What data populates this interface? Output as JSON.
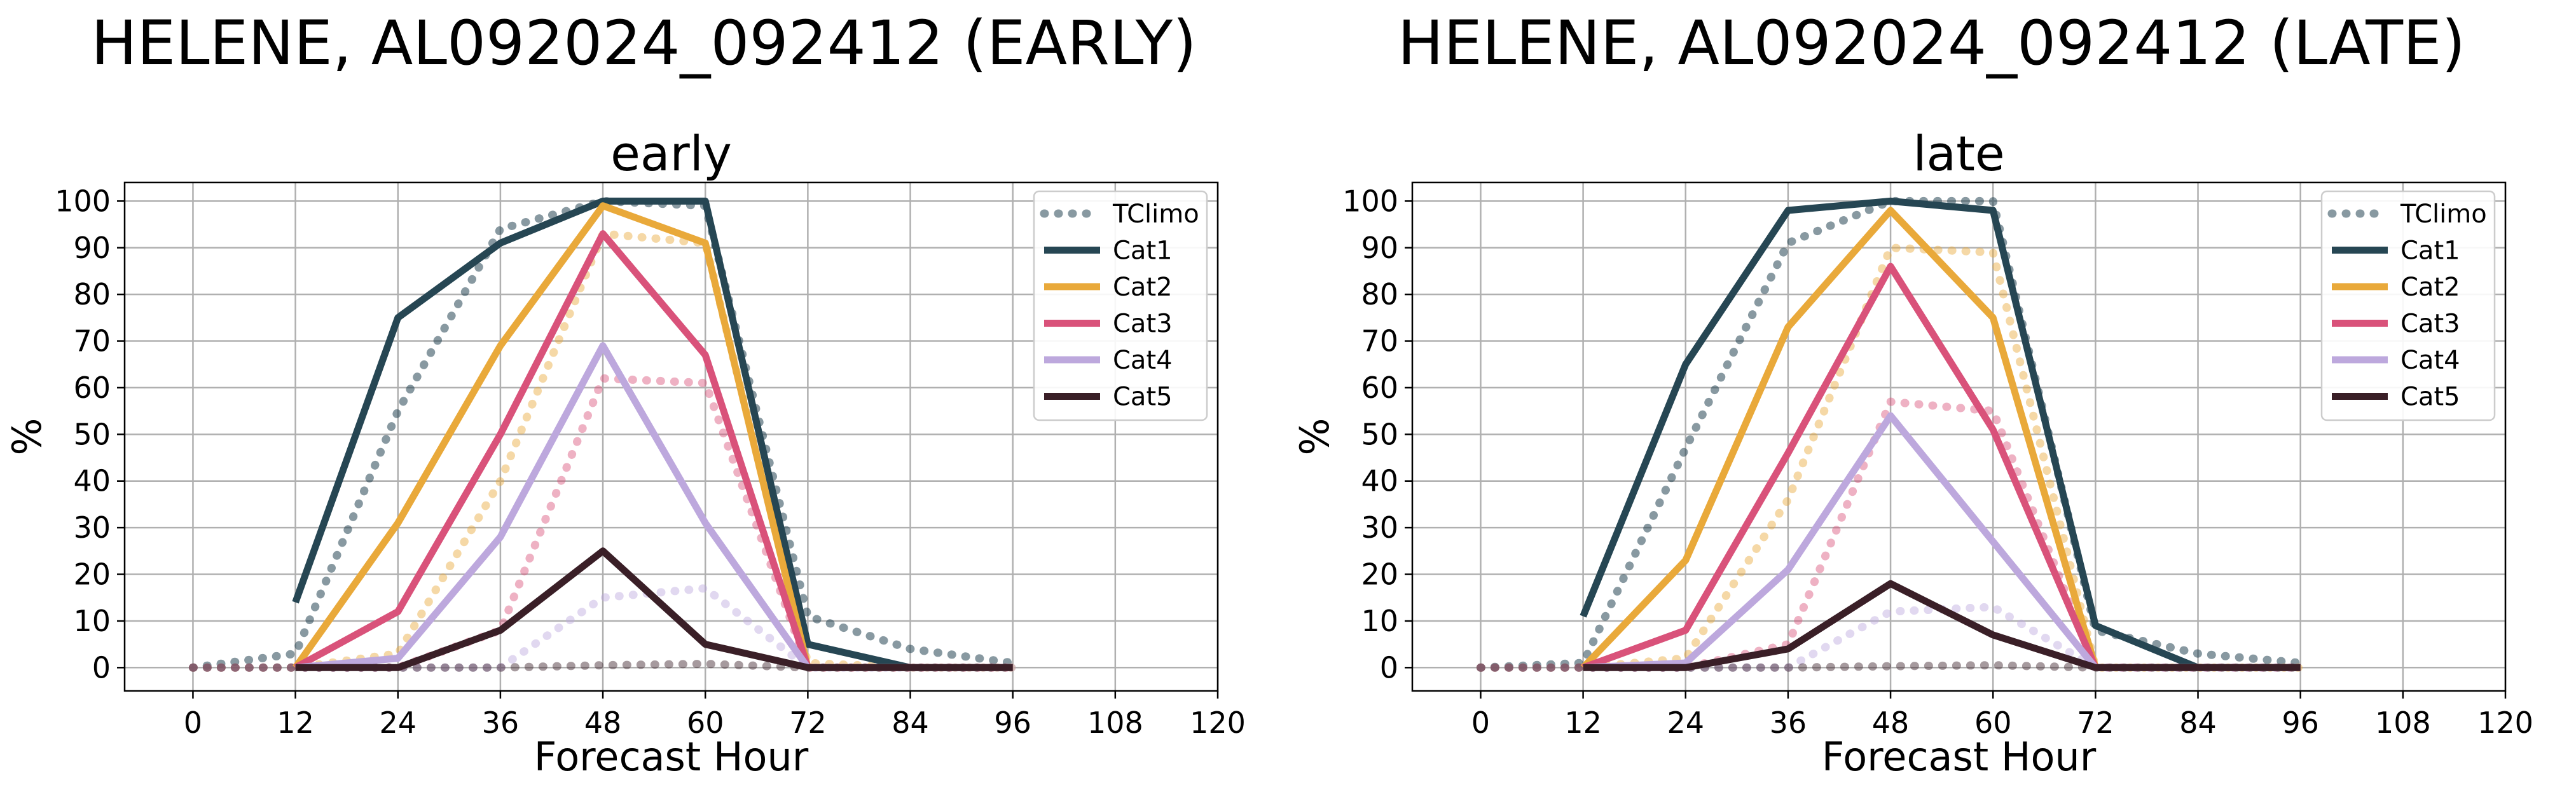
{
  "figures": [
    {
      "suptitle": "HELENE, AL092024_092412 (EARLY)",
      "panel_title": "early"
    },
    {
      "suptitle": "HELENE, AL092024_092412 (LATE)",
      "panel_title": "late"
    }
  ],
  "chart_data": [
    {
      "type": "line",
      "title": "early",
      "xlabel": "Forecast Hour",
      "ylabel": "%",
      "xlim": [
        -8,
        120
      ],
      "ylim": [
        -5,
        104
      ],
      "xticks": [
        0,
        12,
        24,
        36,
        48,
        60,
        72,
        84,
        96,
        108,
        120
      ],
      "yticks": [
        0,
        10,
        20,
        30,
        40,
        50,
        60,
        70,
        80,
        90,
        100
      ],
      "grid": true,
      "legend_position": "upper right",
      "legend": [
        "TClimo",
        "Cat1",
        "Cat2",
        "Cat3",
        "Cat4",
        "Cat5"
      ],
      "series": [
        {
          "name": "Cat1",
          "color": "#264653",
          "style": "solid",
          "x": [
            12,
            24,
            36,
            48,
            60,
            72,
            84,
            96
          ],
          "values": [
            14,
            75,
            91,
            100,
            100,
            5,
            0,
            0
          ]
        },
        {
          "name": "Cat2",
          "color": "#E9A93A",
          "style": "solid",
          "x": [
            12,
            24,
            36,
            48,
            60,
            72,
            84,
            96
          ],
          "values": [
            0,
            31,
            69,
            99,
            91,
            0,
            0,
            0
          ]
        },
        {
          "name": "Cat3",
          "color": "#D9527A",
          "style": "solid",
          "x": [
            12,
            24,
            36,
            48,
            60,
            72,
            84,
            96
          ],
          "values": [
            0,
            12,
            50,
            93,
            67,
            0,
            0,
            0
          ]
        },
        {
          "name": "Cat4",
          "color": "#BDA8DD",
          "style": "solid",
          "x": [
            12,
            24,
            36,
            48,
            60,
            72,
            84,
            96
          ],
          "values": [
            0,
            2,
            28,
            69,
            31,
            0,
            0,
            0
          ]
        },
        {
          "name": "Cat5",
          "color": "#3A1F27",
          "style": "solid",
          "x": [
            12,
            24,
            36,
            48,
            60,
            72,
            84,
            96
          ],
          "values": [
            0,
            0,
            8,
            25,
            5,
            0,
            0,
            0
          ]
        }
      ],
      "climo_series": [
        {
          "name": "TClimo",
          "color": "#264653",
          "x": [
            0,
            12,
            24,
            36,
            48,
            60,
            72,
            84,
            96
          ],
          "values": [
            0,
            3,
            55,
            94,
            100,
            99,
            11,
            4,
            1
          ]
        },
        {
          "name": "TClimo Cat2",
          "color": "#E9A93A",
          "x": [
            0,
            12,
            24,
            36,
            48,
            60,
            72,
            84,
            96
          ],
          "values": [
            0,
            0,
            3,
            40,
            93,
            91,
            1,
            0,
            0
          ]
        },
        {
          "name": "TClimo Cat3",
          "color": "#D9527A",
          "x": [
            0,
            12,
            24,
            36,
            48,
            60,
            72,
            84,
            96
          ],
          "values": [
            0,
            0,
            0,
            8,
            62,
            61,
            0,
            0,
            0
          ]
        },
        {
          "name": "TClimo Cat4",
          "color": "#BDA8DD",
          "x": [
            0,
            12,
            24,
            36,
            48,
            60,
            72,
            84,
            96
          ],
          "values": [
            0,
            0,
            0,
            0,
            15,
            17,
            0,
            0,
            0
          ]
        },
        {
          "name": "TClimo Cat5",
          "color": "#3A1F27",
          "x": [
            0,
            12,
            24,
            36,
            48,
            60,
            72,
            84,
            96
          ],
          "values": [
            0,
            0,
            0,
            0,
            0.5,
            0.8,
            0,
            0,
            0
          ]
        }
      ]
    },
    {
      "type": "line",
      "title": "late",
      "xlabel": "Forecast Hour",
      "ylabel": "%",
      "xlim": [
        -8,
        120
      ],
      "ylim": [
        -5,
        104
      ],
      "xticks": [
        0,
        12,
        24,
        36,
        48,
        60,
        72,
        84,
        96,
        108,
        120
      ],
      "yticks": [
        0,
        10,
        20,
        30,
        40,
        50,
        60,
        70,
        80,
        90,
        100
      ],
      "grid": true,
      "legend_position": "upper right",
      "legend": [
        "TClimo",
        "Cat1",
        "Cat2",
        "Cat3",
        "Cat4",
        "Cat5"
      ],
      "series": [
        {
          "name": "Cat1",
          "color": "#264653",
          "style": "solid",
          "x": [
            12,
            24,
            36,
            48,
            60,
            72,
            84,
            96
          ],
          "values": [
            11,
            65,
            98,
            100,
            98,
            9,
            0,
            0
          ]
        },
        {
          "name": "Cat2",
          "color": "#E9A93A",
          "style": "solid",
          "x": [
            12,
            24,
            36,
            48,
            60,
            72,
            84,
            96
          ],
          "values": [
            0,
            23,
            73,
            98,
            75,
            0,
            0,
            0
          ]
        },
        {
          "name": "Cat3",
          "color": "#D9527A",
          "style": "solid",
          "x": [
            12,
            24,
            36,
            48,
            60,
            72,
            84,
            96
          ],
          "values": [
            0,
            8,
            46,
            86,
            51,
            0,
            0,
            0
          ]
        },
        {
          "name": "Cat4",
          "color": "#BDA8DD",
          "style": "solid",
          "x": [
            12,
            24,
            36,
            48,
            60,
            72,
            84,
            96
          ],
          "values": [
            0,
            1,
            21,
            54,
            27,
            0,
            0,
            0
          ]
        },
        {
          "name": "Cat5",
          "color": "#3A1F27",
          "style": "solid",
          "x": [
            12,
            24,
            36,
            48,
            60,
            72,
            84,
            96
          ],
          "values": [
            0,
            0,
            4,
            18,
            7,
            0,
            0,
            0
          ]
        }
      ],
      "climo_series": [
        {
          "name": "TClimo",
          "color": "#264653",
          "x": [
            0,
            12,
            24,
            36,
            48,
            60,
            72,
            84,
            96
          ],
          "values": [
            0,
            1,
            47,
            91,
            100,
            100,
            8,
            3,
            1
          ]
        },
        {
          "name": "TClimo Cat2",
          "color": "#E9A93A",
          "x": [
            0,
            12,
            24,
            36,
            48,
            60,
            72,
            84,
            96
          ],
          "values": [
            0,
            0,
            2,
            36,
            90,
            89,
            0,
            0,
            0
          ]
        },
        {
          "name": "TClimo Cat3",
          "color": "#D9527A",
          "x": [
            0,
            12,
            24,
            36,
            48,
            60,
            72,
            84,
            96
          ],
          "values": [
            0,
            0,
            0,
            5,
            57,
            55,
            0,
            0,
            0
          ]
        },
        {
          "name": "TClimo Cat4",
          "color": "#BDA8DD",
          "x": [
            0,
            12,
            24,
            36,
            48,
            60,
            72,
            84,
            96
          ],
          "values": [
            0,
            0,
            0,
            0,
            12,
            13,
            0,
            0,
            0
          ]
        },
        {
          "name": "TClimo Cat5",
          "color": "#3A1F27",
          "x": [
            0,
            12,
            24,
            36,
            48,
            60,
            72,
            84,
            96
          ],
          "values": [
            0,
            0,
            0,
            0,
            0.3,
            0.5,
            0,
            0,
            0
          ]
        }
      ]
    }
  ]
}
